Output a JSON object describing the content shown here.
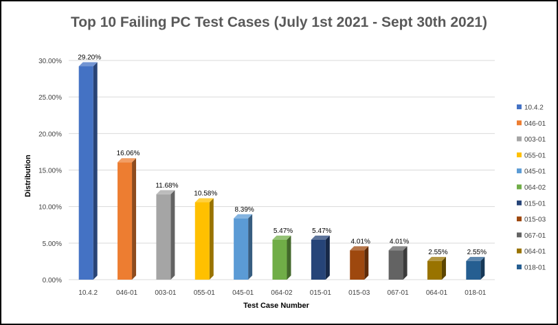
{
  "chart_data": {
    "type": "bar",
    "title": "Top 10 Failing PC Test Cases (July 1st 2021 - Sept 30th 2021)",
    "xlabel": "Test Case Number",
    "ylabel": "Distribution",
    "ylim": [
      0,
      30
    ],
    "yticks": [
      0,
      5,
      10,
      15,
      20,
      25,
      30
    ],
    "ytick_labels": [
      "0.00%",
      "5.00%",
      "10.00%",
      "15.00%",
      "20.00%",
      "25.00%",
      "30.00%"
    ],
    "grid": true,
    "legend_position": "right",
    "categories": [
      "10.4.2",
      "046-01",
      "003-01",
      "055-01",
      "045-01",
      "064-02",
      "015-01",
      "015-03",
      "067-01",
      "064-01",
      "018-01"
    ],
    "values": [
      29.2,
      16.06,
      11.68,
      10.58,
      8.39,
      5.47,
      5.47,
      4.01,
      4.01,
      2.55,
      2.55
    ],
    "value_labels": [
      "29.20%",
      "16.06%",
      "11.68%",
      "10.58%",
      "8.39%",
      "5.47%",
      "5.47%",
      "4.01%",
      "4.01%",
      "2.55%",
      "2.55%"
    ],
    "colors": [
      "#4472C4",
      "#ED7D31",
      "#A5A5A5",
      "#FFC000",
      "#5B9BD5",
      "#70AD47",
      "#264478",
      "#9E480E",
      "#636363",
      "#997300",
      "#255E91"
    ]
  }
}
